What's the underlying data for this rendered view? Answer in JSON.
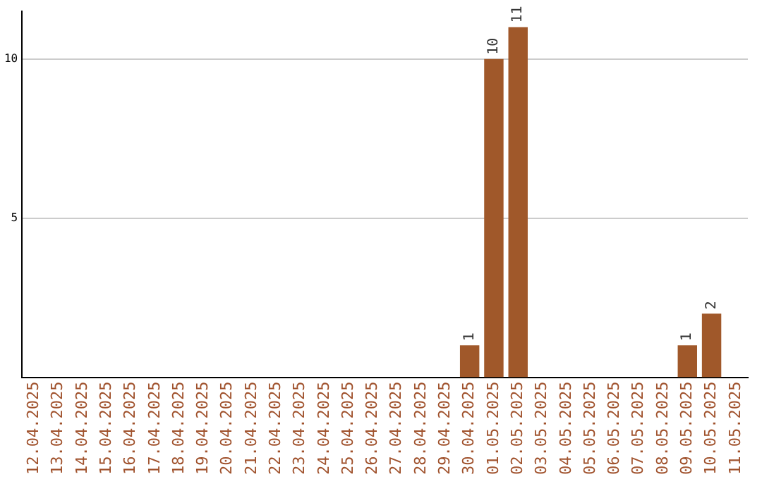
{
  "chart_data": {
    "type": "bar",
    "categories": [
      "12.04.2025",
      "13.04.2025",
      "14.04.2025",
      "15.04.2025",
      "16.04.2025",
      "17.04.2025",
      "18.04.2025",
      "19.04.2025",
      "20.04.2025",
      "21.04.2025",
      "22.04.2025",
      "23.04.2025",
      "24.04.2025",
      "25.04.2025",
      "26.04.2025",
      "27.04.2025",
      "28.04.2025",
      "29.04.2025",
      "30.04.2025",
      "01.05.2025",
      "02.05.2025",
      "03.05.2025",
      "04.05.2025",
      "05.05.2025",
      "06.05.2025",
      "07.05.2025",
      "08.05.2025",
      "09.05.2025",
      "10.05.2025",
      "11.05.2025"
    ],
    "values": [
      0,
      0,
      0,
      0,
      0,
      0,
      0,
      0,
      0,
      0,
      0,
      0,
      0,
      0,
      0,
      0,
      0,
      0,
      1,
      10,
      11,
      0,
      0,
      0,
      0,
      0,
      0,
      1,
      2,
      0
    ],
    "value_labels": [
      null,
      null,
      null,
      null,
      null,
      null,
      null,
      null,
      null,
      null,
      null,
      null,
      null,
      null,
      null,
      null,
      null,
      null,
      "1",
      "10",
      "11",
      null,
      null,
      null,
      null,
      null,
      null,
      "1",
      "2",
      null
    ],
    "color": "#a0582a",
    "ylim": [
      0,
      11.5
    ],
    "yticks": [
      5,
      10
    ],
    "grid": "y"
  }
}
